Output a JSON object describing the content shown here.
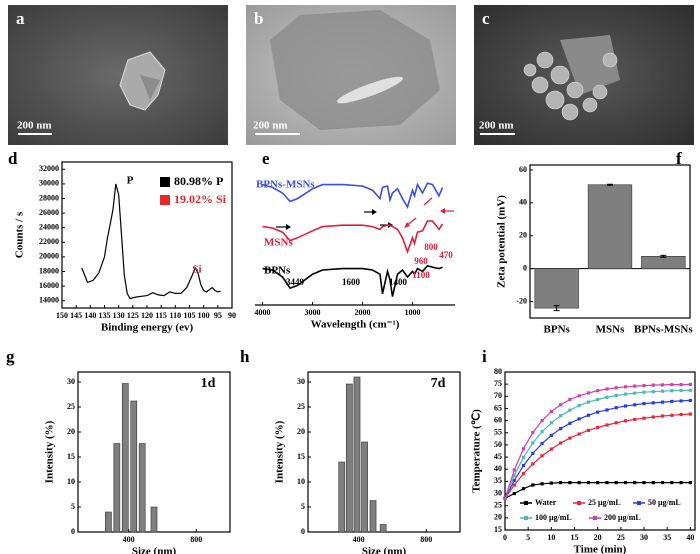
{
  "panels": [
    {
      "label": "a",
      "scale_bar": "200 nm"
    },
    {
      "label": "b",
      "scale_bar": "200 nm"
    },
    {
      "label": "c",
      "scale_bar": "200 nm"
    }
  ],
  "chart_data": [
    {
      "type": "line",
      "panel_label": "d",
      "xlabel": "Binding energy (ev)",
      "ylabel": "Counts / s",
      "xlim": [
        150,
        90
      ],
      "xticks": [
        150,
        145,
        140,
        135,
        130,
        125,
        120,
        115,
        110,
        105,
        100,
        95,
        90
      ],
      "ylim": [
        13000,
        33000
      ],
      "yticks": [
        14000,
        16000,
        18000,
        20000,
        22000,
        24000,
        26000,
        28000,
        30000,
        32000
      ],
      "x": [
        143,
        141,
        139,
        137,
        135,
        134,
        133,
        132,
        131,
        130,
        129,
        128,
        127,
        126,
        124,
        122,
        120,
        118,
        116,
        114,
        112,
        110,
        108,
        106,
        104,
        103,
        102,
        101,
        100,
        99,
        98,
        97,
        96,
        95,
        94
      ],
      "series": [
        {
          "color": "#000000",
          "values": [
            18500,
            16500,
            16800,
            17800,
            20000,
            22500,
            24500,
            26500,
            30000,
            28500,
            23000,
            17500,
            15000,
            14300,
            14500,
            14600,
            14700,
            15100,
            14800,
            14700,
            15200,
            15000,
            15000,
            15800,
            17500,
            18500,
            17800,
            16200,
            15400,
            15200,
            15500,
            15800,
            15400,
            15200,
            15300
          ]
        }
      ],
      "legend": [
        {
          "label": "80.98% P",
          "color": "#000000"
        },
        {
          "label": "19.02% Si",
          "color": "#e8262a"
        }
      ],
      "annotations": [
        {
          "text": "P",
          "color": "#000000"
        },
        {
          "text": "Si",
          "color": "#d0183a"
        }
      ]
    },
    {
      "type": "line",
      "panel_label": "e",
      "xlabel": "Wavelength (cm⁻¹)",
      "xlim": [
        4150,
        150
      ],
      "xticks": [
        4000,
        3000,
        2000,
        1000
      ],
      "ylim": [
        0,
        100
      ],
      "x": [
        4000,
        3800,
        3600,
        3449,
        3300,
        3000,
        2800,
        2400,
        2000,
        1800,
        1650,
        1600,
        1500,
        1450,
        1400,
        1300,
        1200,
        1100,
        1000,
        960,
        900,
        800,
        700,
        600,
        470,
        400
      ],
      "series": [
        {
          "name": "BPNs-MSNs",
          "color": "#3a50e0",
          "values": [
            86,
            84,
            80,
            74,
            76,
            83,
            86,
            86,
            85,
            82,
            76,
            84,
            85,
            75,
            80,
            83,
            76,
            70,
            82,
            78,
            86,
            80,
            87,
            86,
            78,
            84
          ]
        },
        {
          "name": "MSNs",
          "color": "#e0203a",
          "values": [
            56,
            55,
            52,
            46,
            48,
            53,
            56,
            57,
            57,
            56,
            54,
            56,
            57,
            57,
            56,
            54,
            48,
            38,
            48,
            44,
            52,
            53,
            60,
            60,
            54,
            58
          ]
        },
        {
          "name": "BPNs",
          "color": "#000000",
          "values": [
            26,
            25,
            20,
            12,
            14,
            22,
            25,
            26,
            26,
            25,
            22,
            8,
            24,
            18,
            6,
            22,
            25,
            20,
            24,
            22,
            26,
            24,
            28,
            27,
            26,
            27
          ]
        }
      ],
      "annotations": [
        {
          "text": "3449",
          "color": "#000000"
        },
        {
          "text": "1600",
          "color": "#000000"
        },
        {
          "text": "1400",
          "color": "#000000"
        },
        {
          "text": "800",
          "color": "#e0203a"
        },
        {
          "text": "960",
          "color": "#e0203a"
        },
        {
          "text": "1100",
          "color": "#e0203a"
        },
        {
          "text": "470",
          "color": "#e0203a"
        }
      ]
    },
    {
      "type": "bar",
      "panel_label": "f",
      "ylabel": "Zeta potential (mV)",
      "categories": [
        "BPNs",
        "MSNs",
        "BPNs-MSNs"
      ],
      "values": [
        -24,
        51,
        7.5
      ],
      "errors": [
        1.5,
        0.3,
        0.6
      ],
      "color": "#7f7f7f",
      "ylim": [
        -30,
        63
      ],
      "yticks": [
        -20,
        0,
        20,
        40,
        60
      ]
    },
    {
      "type": "bar",
      "panel_label": "g",
      "annotation": "1d",
      "xlabel": "Size (nm)",
      "ylabel": "Intensity (%)",
      "x": [
        280,
        330,
        380,
        430,
        480,
        550
      ],
      "values": [
        4,
        17.7,
        29.7,
        26.2,
        17.7,
        5
      ],
      "color": "#7f7f7f",
      "xlim": [
        100,
        1000
      ],
      "xticks": [
        400,
        800
      ],
      "ylim": [
        0,
        32
      ],
      "yticks": [
        0,
        5,
        10,
        15,
        20,
        25,
        30
      ]
    },
    {
      "type": "bar",
      "panel_label": "h",
      "annotation": "7d",
      "xlabel": "Size (nm)",
      "ylabel": "Intensity (%)",
      "x": [
        300,
        345,
        390,
        435,
        485,
        545
      ],
      "values": [
        14,
        29.6,
        31,
        18,
        6.3,
        1.5
      ],
      "color": "#7f7f7f",
      "xlim": [
        100,
        1000
      ],
      "xticks": [
        400,
        800
      ],
      "ylim": [
        0,
        32
      ],
      "yticks": [
        0,
        5,
        10,
        15,
        20,
        25,
        30
      ]
    },
    {
      "type": "line",
      "panel_label": "i",
      "xlabel": "Time (min)",
      "ylabel": "Temperature (℃)",
      "markers": true,
      "xlim": [
        0,
        41
      ],
      "xticks": [
        0,
        5,
        10,
        15,
        20,
        25,
        30,
        35,
        40
      ],
      "ylim": [
        15,
        80
      ],
      "yticks": [
        15,
        20,
        25,
        30,
        35,
        40,
        45,
        50,
        55,
        60,
        65,
        70,
        75,
        80
      ],
      "x": [
        0,
        2,
        4,
        6,
        8,
        10,
        12,
        14,
        16,
        18,
        20,
        22,
        24,
        26,
        28,
        30,
        32,
        34,
        36,
        38,
        40
      ],
      "series": [
        {
          "name": "Water",
          "color": "#000000",
          "values": [
            28,
            30,
            32,
            33.5,
            34,
            34.3,
            34.5,
            34.5,
            34.5,
            34.5,
            34.5,
            34.5,
            34.5,
            34.5,
            34.5,
            34.5,
            34.5,
            34.5,
            34.5,
            34.5,
            34.5
          ]
        },
        {
          "name": "25 μg/mL",
          "color": "#e8263c",
          "values": [
            28,
            33.5,
            38.2,
            42.2,
            45.5,
            48.3,
            50.8,
            52.8,
            54.5,
            56,
            57.2,
            58.2,
            59.1,
            59.9,
            60.5,
            61,
            61.5,
            61.9,
            62.2,
            62.5,
            62.7
          ]
        },
        {
          "name": "50 μg/mL",
          "color": "#2a3ee0",
          "values": [
            28,
            35.4,
            41.5,
            46.5,
            50.6,
            53.9,
            56.7,
            58.9,
            60.7,
            62.2,
            63.5,
            64.4,
            65.3,
            66,
            66.5,
            67,
            67.3,
            67.6,
            67.9,
            68.1,
            68.3
          ]
        },
        {
          "name": "100 μg/mL",
          "color": "#4fb8b8",
          "values": [
            28,
            37.5,
            44.9,
            50.8,
            55.5,
            59.1,
            62,
            64.3,
            66.2,
            67.6,
            68.7,
            69.6,
            70.3,
            70.9,
            71.3,
            71.7,
            71.9,
            72.1,
            72.3,
            72.4,
            72.5
          ]
        },
        {
          "name": "200 μg/mL",
          "color": "#d23fb0",
          "values": [
            28,
            39.7,
            48.4,
            55.1,
            60,
            63.7,
            66.5,
            68.7,
            70.2,
            71.4,
            72.3,
            73,
            73.5,
            73.9,
            74.2,
            74.4,
            74.6,
            74.7,
            74.8,
            74.8,
            74.9
          ]
        }
      ]
    }
  ]
}
